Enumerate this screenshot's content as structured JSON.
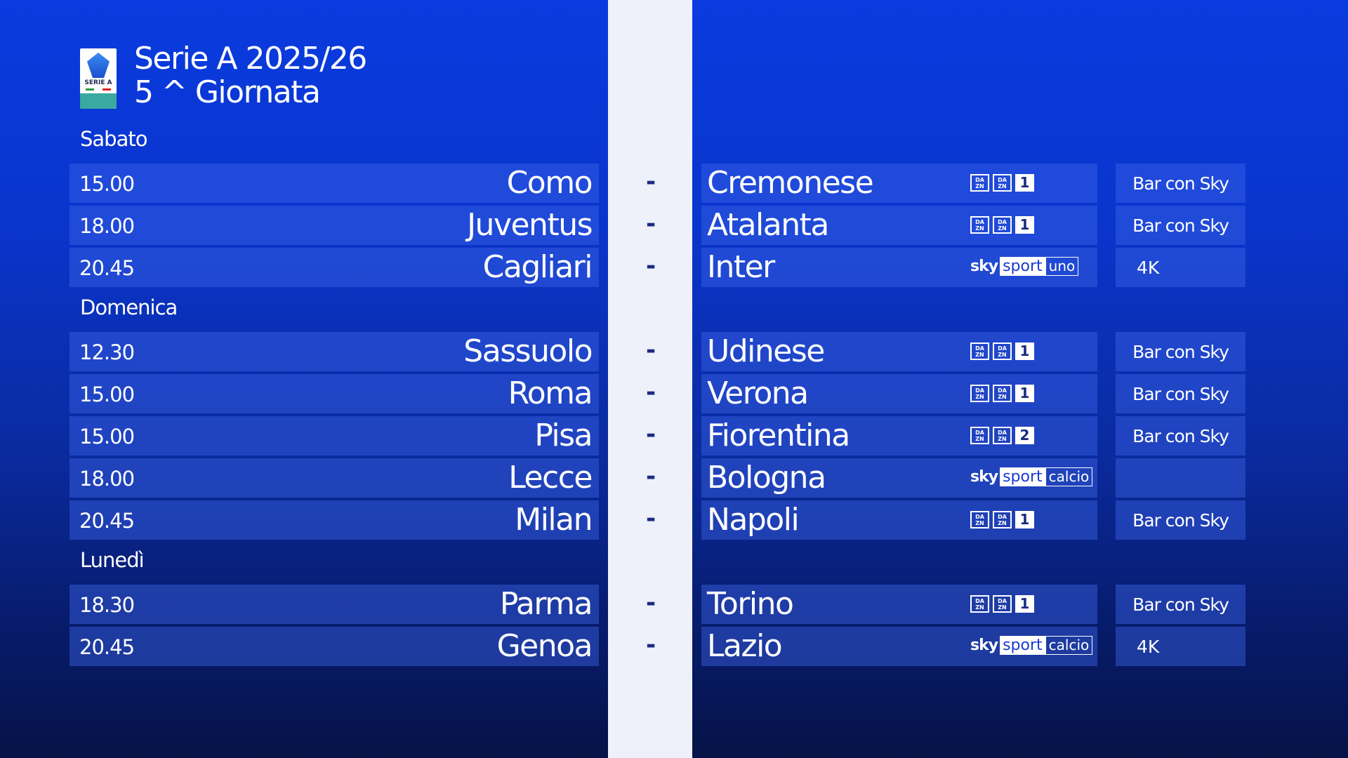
{
  "header": {
    "title_line1": "Serie A 2025/26",
    "title_line2": "5 ^ Giornata",
    "logo_text": "SERIE A"
  },
  "colors": {
    "background_top": "#0a3be0",
    "background_bottom": "#061347",
    "strip": "#eef0fa"
  },
  "separator": "-",
  "days": [
    {
      "label": "Sabato",
      "matches": [
        {
          "time": "15.00",
          "home": "Como",
          "away": "Cremonese",
          "network": "dazn",
          "channel": "1",
          "extra": "Bar con Sky"
        },
        {
          "time": "18.00",
          "home": "Juventus",
          "away": "Atalanta",
          "network": "dazn",
          "channel": "1",
          "extra": "Bar con Sky"
        },
        {
          "time": "20.45",
          "home": "Cagliari",
          "away": "Inter",
          "network": "sky",
          "channel": "uno",
          "extra": "4K"
        }
      ]
    },
    {
      "label": "Domenica",
      "matches": [
        {
          "time": "12.30",
          "home": "Sassuolo",
          "away": "Udinese",
          "network": "dazn",
          "channel": "1",
          "extra": "Bar con Sky"
        },
        {
          "time": "15.00",
          "home": "Roma",
          "away": "Verona",
          "network": "dazn",
          "channel": "1",
          "extra": "Bar con Sky"
        },
        {
          "time": "15.00",
          "home": "Pisa",
          "away": "Fiorentina",
          "network": "dazn",
          "channel": "2",
          "extra": "Bar con Sky"
        },
        {
          "time": "18.00",
          "home": "Lecce",
          "away": "Bologna",
          "network": "sky",
          "channel": "calcio",
          "extra": ""
        },
        {
          "time": "20.45",
          "home": "Milan",
          "away": "Napoli",
          "network": "dazn",
          "channel": "1",
          "extra": "Bar con Sky"
        }
      ]
    },
    {
      "label": "Lunedì",
      "matches": [
        {
          "time": "18.30",
          "home": "Parma",
          "away": "Torino",
          "network": "dazn",
          "channel": "1",
          "extra": "Bar con Sky"
        },
        {
          "time": "20.45",
          "home": "Genoa",
          "away": "Lazio",
          "network": "sky",
          "channel": "calcio",
          "extra": "4K"
        }
      ]
    }
  ],
  "brand": {
    "dazn_top": "DA",
    "dazn_bottom": "ZN",
    "sky": "sky",
    "sport": "sport"
  }
}
